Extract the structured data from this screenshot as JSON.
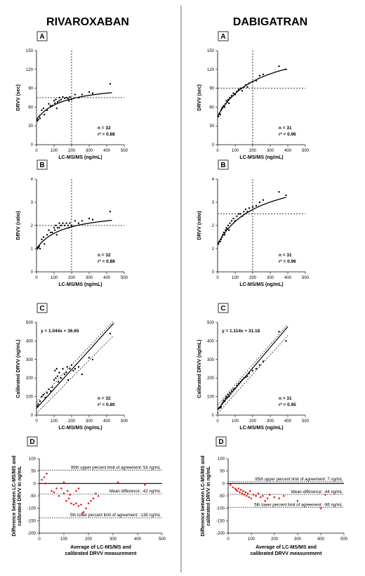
{
  "columns": [
    "RIVAROXABAN",
    "DABIGATRAN"
  ],
  "chart_data": [
    {
      "id": "riva_A",
      "col": 0,
      "row": 0,
      "type": "scatter",
      "letter": "A",
      "xlabel": "LC-MS/MS (ng/mL)",
      "ylabel": "DRVV (sec)",
      "xlim": [
        0,
        500
      ],
      "ylim": [
        0,
        150
      ],
      "xticks": [
        0,
        100,
        200,
        300,
        400,
        500
      ],
      "yticks": [
        0,
        30,
        60,
        90,
        120,
        150
      ],
      "points": [
        [
          5,
          38
        ],
        [
          10,
          40
        ],
        [
          15,
          45
        ],
        [
          20,
          42
        ],
        [
          30,
          55
        ],
        [
          40,
          58
        ],
        [
          45,
          48
        ],
        [
          60,
          55
        ],
        [
          70,
          65
        ],
        [
          80,
          62
        ],
        [
          100,
          70
        ],
        [
          105,
          66
        ],
        [
          110,
          72
        ],
        [
          115,
          58
        ],
        [
          120,
          68
        ],
        [
          130,
          75
        ],
        [
          140,
          72
        ],
        [
          150,
          76
        ],
        [
          160,
          74
        ],
        [
          170,
          75
        ],
        [
          180,
          74
        ],
        [
          185,
          70
        ],
        [
          190,
          76
        ],
        [
          200,
          72
        ],
        [
          220,
          80
        ],
        [
          240,
          75
        ],
        [
          260,
          80
        ],
        [
          300,
          84
        ],
        [
          320,
          82
        ],
        [
          420,
          97
        ],
        [
          130,
          70
        ],
        [
          90,
          62
        ]
      ],
      "curve": {
        "kind": "hyper",
        "base": 40,
        "max": 58,
        "half": 150,
        "xmax": 430
      },
      "hline": 75,
      "vline": 200,
      "stats": [
        "n = 32",
        "r² = 0.88"
      ]
    },
    {
      "id": "dabi_A",
      "col": 1,
      "row": 0,
      "type": "scatter",
      "letter": "A",
      "xlabel": "LC-MS/MS (ng/mL)",
      "ylabel": "DRVV (sec)",
      "xlim": [
        0,
        500
      ],
      "ylim": [
        0,
        150
      ],
      "xticks": [
        0,
        100,
        200,
        300,
        400,
        500
      ],
      "yticks": [
        0,
        30,
        60,
        90,
        120,
        150
      ],
      "points": [
        [
          5,
          45
        ],
        [
          10,
          50
        ],
        [
          15,
          48
        ],
        [
          20,
          55
        ],
        [
          25,
          58
        ],
        [
          30,
          60
        ],
        [
          35,
          62
        ],
        [
          40,
          60
        ],
        [
          45,
          65
        ],
        [
          50,
          70
        ],
        [
          55,
          68
        ],
        [
          60,
          72
        ],
        [
          65,
          66
        ],
        [
          70,
          75
        ],
        [
          80,
          78
        ],
        [
          90,
          82
        ],
        [
          100,
          80
        ],
        [
          110,
          85
        ],
        [
          120,
          88
        ],
        [
          130,
          90
        ],
        [
          140,
          86
        ],
        [
          150,
          92
        ],
        [
          160,
          95
        ],
        [
          170,
          92
        ],
        [
          180,
          98
        ],
        [
          200,
          100
        ],
        [
          220,
          102
        ],
        [
          240,
          110
        ],
        [
          260,
          112
        ],
        [
          350,
          125
        ],
        [
          390,
          120
        ]
      ],
      "curve": {
        "kind": "hyper",
        "base": 45,
        "max": 120,
        "half": 230,
        "xmax": 390
      },
      "hline": 90,
      "vline": 200,
      "stats": [
        "n = 31",
        "r² = 0.96"
      ]
    },
    {
      "id": "riva_B",
      "col": 0,
      "row": 1,
      "type": "scatter",
      "letter": "B",
      "xlabel": "LC-MS/MS (ng/mL)",
      "ylabel": "DRVV (ratio)",
      "xlim": [
        0,
        500
      ],
      "ylim": [
        0,
        4
      ],
      "xticks": [
        0,
        100,
        200,
        300,
        400,
        500
      ],
      "yticks": [
        0,
        1,
        2,
        3,
        4
      ],
      "points": [
        [
          5,
          1.0
        ],
        [
          10,
          1.05
        ],
        [
          15,
          1.1
        ],
        [
          20,
          1.0
        ],
        [
          30,
          1.4
        ],
        [
          40,
          1.5
        ],
        [
          45,
          1.2
        ],
        [
          60,
          1.6
        ],
        [
          70,
          1.8
        ],
        [
          80,
          1.7
        ],
        [
          100,
          1.9
        ],
        [
          105,
          1.8
        ],
        [
          110,
          2.0
        ],
        [
          115,
          1.6
        ],
        [
          120,
          1.9
        ],
        [
          130,
          2.1
        ],
        [
          140,
          2.0
        ],
        [
          150,
          2.1
        ],
        [
          160,
          2.0
        ],
        [
          170,
          2.1
        ],
        [
          180,
          2.0
        ],
        [
          185,
          1.9
        ],
        [
          190,
          2.1
        ],
        [
          200,
          2.0
        ],
        [
          220,
          2.2
        ],
        [
          240,
          2.1
        ],
        [
          260,
          2.2
        ],
        [
          300,
          2.3
        ],
        [
          320,
          2.25
        ],
        [
          420,
          2.6
        ],
        [
          130,
          1.9
        ],
        [
          90,
          1.7
        ]
      ],
      "curve": {
        "kind": "hyper",
        "base": 1.0,
        "max": 1.65,
        "half": 150,
        "xmax": 430
      },
      "hline": 2,
      "vline": 200,
      "stats": [
        "n = 32",
        "r² = 0.88"
      ]
    },
    {
      "id": "dabi_B",
      "col": 1,
      "row": 1,
      "type": "scatter",
      "letter": "B",
      "xlabel": "LC-MS/MS (ng/mL)",
      "ylabel": "DRVV (ratio)",
      "xlim": [
        0,
        500
      ],
      "ylim": [
        0,
        4
      ],
      "xticks": [
        0,
        100,
        200,
        300,
        400,
        500
      ],
      "yticks": [
        0,
        1,
        2,
        3,
        4
      ],
      "points": [
        [
          5,
          1.2
        ],
        [
          10,
          1.3
        ],
        [
          15,
          1.3
        ],
        [
          20,
          1.4
        ],
        [
          25,
          1.5
        ],
        [
          30,
          1.6
        ],
        [
          35,
          1.7
        ],
        [
          40,
          1.6
        ],
        [
          45,
          1.8
        ],
        [
          50,
          1.9
        ],
        [
          55,
          1.85
        ],
        [
          60,
          2.0
        ],
        [
          65,
          1.8
        ],
        [
          70,
          2.1
        ],
        [
          80,
          2.2
        ],
        [
          90,
          2.3
        ],
        [
          100,
          2.2
        ],
        [
          110,
          2.4
        ],
        [
          120,
          2.5
        ],
        [
          130,
          2.5
        ],
        [
          140,
          2.4
        ],
        [
          150,
          2.6
        ],
        [
          160,
          2.7
        ],
        [
          170,
          2.6
        ],
        [
          180,
          2.75
        ],
        [
          200,
          2.8
        ],
        [
          220,
          2.85
        ],
        [
          240,
          3.0
        ],
        [
          260,
          3.1
        ],
        [
          350,
          3.45
        ],
        [
          390,
          3.3
        ]
      ],
      "curve": {
        "kind": "hyper",
        "base": 1.2,
        "max": 3.2,
        "half": 230,
        "xmax": 390
      },
      "hline": 2.5,
      "vline": 200,
      "stats": [
        "n = 31",
        "r² = 0.96"
      ]
    },
    {
      "id": "riva_C",
      "col": 0,
      "row": 2,
      "type": "scatter",
      "letter": "C",
      "xlabel": "LC-MS/MS (ng/mL)",
      "ylabel": "Calibrated DRVV (ng/mL)",
      "xlim": [
        0,
        500
      ],
      "ylim": [
        0,
        500
      ],
      "xticks": [
        0,
        100,
        200,
        300,
        400,
        500
      ],
      "yticks": [
        0,
        100,
        200,
        300,
        400,
        500
      ],
      "points": [
        [
          5,
          50
        ],
        [
          10,
          60
        ],
        [
          20,
          75
        ],
        [
          30,
          100
        ],
        [
          40,
          110
        ],
        [
          50,
          95
        ],
        [
          60,
          120
        ],
        [
          80,
          130
        ],
        [
          100,
          190
        ],
        [
          105,
          240
        ],
        [
          110,
          200
        ],
        [
          115,
          250
        ],
        [
          120,
          210
        ],
        [
          125,
          180
        ],
        [
          130,
          230
        ],
        [
          140,
          200
        ],
        [
          150,
          250
        ],
        [
          160,
          220
        ],
        [
          170,
          230
        ],
        [
          175,
          260
        ],
        [
          180,
          190
        ],
        [
          190,
          250
        ],
        [
          200,
          270
        ],
        [
          210,
          240
        ],
        [
          220,
          250
        ],
        [
          240,
          260
        ],
        [
          260,
          220
        ],
        [
          300,
          310
        ],
        [
          320,
          300
        ],
        [
          420,
          440
        ],
        [
          90,
          150
        ],
        [
          70,
          140
        ]
      ],
      "line": {
        "slope": 1.044,
        "intercept": 36.65,
        "xmax": 440
      },
      "band": {
        "lower": [
          [
            0,
            10
          ],
          [
            440,
            430
          ]
        ],
        "upper": [
          [
            0,
            70
          ],
          [
            440,
            510
          ]
        ]
      },
      "equation": "y = 1.044x + 36.65",
      "stats": [
        "n = 32",
        "r² = 0.80"
      ]
    },
    {
      "id": "dabi_C",
      "col": 1,
      "row": 2,
      "type": "scatter",
      "letter": "C",
      "xlabel": "LC-MS/MS (ng/mL)",
      "ylabel": "Calibrated DRVV (ng/mL)",
      "xlim": [
        0,
        500
      ],
      "ylim": [
        0,
        500
      ],
      "xticks": [
        0,
        100,
        200,
        300,
        400,
        500
      ],
      "yticks": [
        0,
        100,
        200,
        300,
        400,
        500
      ],
      "points": [
        [
          5,
          35
        ],
        [
          10,
          40
        ],
        [
          15,
          40
        ],
        [
          20,
          45
        ],
        [
          25,
          60
        ],
        [
          30,
          70
        ],
        [
          35,
          80
        ],
        [
          40,
          75
        ],
        [
          45,
          90
        ],
        [
          50,
          100
        ],
        [
          55,
          95
        ],
        [
          60,
          110
        ],
        [
          65,
          100
        ],
        [
          70,
          120
        ],
        [
          80,
          130
        ],
        [
          90,
          140
        ],
        [
          100,
          145
        ],
        [
          110,
          160
        ],
        [
          120,
          170
        ],
        [
          130,
          180
        ],
        [
          140,
          190
        ],
        [
          150,
          200
        ],
        [
          160,
          205
        ],
        [
          170,
          210
        ],
        [
          180,
          225
        ],
        [
          200,
          240
        ],
        [
          220,
          250
        ],
        [
          240,
          270
        ],
        [
          260,
          290
        ],
        [
          350,
          450
        ],
        [
          390,
          400
        ]
      ],
      "line": {
        "slope": 1.114,
        "intercept": 31.18,
        "xmax": 400
      },
      "band": {
        "lower": [
          [
            0,
            10
          ],
          [
            400,
            430
          ]
        ],
        "upper": [
          [
            0,
            55
          ],
          [
            400,
            490
          ]
        ]
      },
      "equation": "y = 1.114x + 31.18",
      "stats": [
        "n = 31",
        "r² = 0.95"
      ]
    },
    {
      "id": "riva_D",
      "col": 0,
      "row": 3,
      "type": "scatter",
      "letter": "D",
      "xlabel": "Average of LC-MS/MS and calibrated DRVV measurement",
      "ylabel": "Difference between LC-MS/MS and calibrated DRVV in ng/mL",
      "xlim": [
        0,
        500
      ],
      "ylim": [
        -200,
        100
      ],
      "xticks": [
        0,
        100,
        200,
        300,
        400,
        500
      ],
      "yticks": [
        -200,
        -150,
        -100,
        -50,
        0,
        50,
        100
      ],
      "points": [
        [
          10,
          15
        ],
        [
          20,
          25
        ],
        [
          25,
          0
        ],
        [
          30,
          40
        ],
        [
          50,
          -30
        ],
        [
          60,
          -35
        ],
        [
          70,
          -20
        ],
        [
          80,
          -50
        ],
        [
          90,
          -20
        ],
        [
          100,
          5
        ],
        [
          110,
          -70
        ],
        [
          115,
          -30
        ],
        [
          120,
          -60
        ],
        [
          125,
          -45
        ],
        [
          130,
          -80
        ],
        [
          140,
          -85
        ],
        [
          150,
          -80
        ],
        [
          160,
          -90
        ],
        [
          170,
          -85
        ],
        [
          175,
          -120
        ],
        [
          180,
          -115
        ],
        [
          190,
          -100
        ],
        [
          200,
          -80
        ],
        [
          210,
          -70
        ],
        [
          220,
          -60
        ],
        [
          230,
          -40
        ],
        [
          240,
          -50
        ],
        [
          150,
          -30
        ],
        [
          160,
          -20
        ],
        [
          320,
          5
        ],
        [
          430,
          -5
        ],
        [
          100,
          -40
        ]
      ],
      "lines": [
        {
          "y": 0,
          "style": "solid",
          "label": ""
        },
        {
          "y": 54,
          "style": "dotted",
          "label": "95th upper percent limit of agreement: 54 ng/mL"
        },
        {
          "y": -42,
          "style": "dotted",
          "label": "Mean difference: -42 ng/mL"
        },
        {
          "y": -138,
          "style": "dotted",
          "label": "5th lower percent limit of agreement: -138 ng/mL"
        }
      ]
    },
    {
      "id": "dabi_D",
      "col": 1,
      "row": 3,
      "type": "scatter",
      "letter": "D",
      "xlabel": "Average of LC-MS/MS and calibrated DRVV measurement",
      "ylabel": "Difference between LC-MS/MS and calibrated DRVV in ng/mL",
      "xlim": [
        0,
        500
      ],
      "ylim": [
        -200,
        100
      ],
      "xticks": [
        0,
        100,
        200,
        300,
        400,
        500
      ],
      "yticks": [
        -200,
        -150,
        -100,
        -50,
        0,
        50,
        100
      ],
      "points": [
        [
          10,
          -5
        ],
        [
          20,
          -15
        ],
        [
          30,
          -20
        ],
        [
          35,
          -25
        ],
        [
          40,
          -30
        ],
        [
          45,
          -20
        ],
        [
          50,
          -35
        ],
        [
          55,
          -25
        ],
        [
          60,
          -40
        ],
        [
          65,
          -30
        ],
        [
          70,
          -45
        ],
        [
          75,
          -35
        ],
        [
          80,
          -50
        ],
        [
          85,
          -40
        ],
        [
          90,
          -55
        ],
        [
          95,
          -30
        ],
        [
          100,
          -60
        ],
        [
          110,
          -45
        ],
        [
          120,
          -50
        ],
        [
          130,
          -40
        ],
        [
          140,
          -55
        ],
        [
          150,
          -50
        ],
        [
          160,
          -70
        ],
        [
          170,
          -60
        ],
        [
          180,
          -45
        ],
        [
          200,
          -55
        ],
        [
          220,
          -60
        ],
        [
          240,
          -50
        ],
        [
          300,
          -70
        ],
        [
          400,
          -100
        ],
        [
          420,
          -45
        ]
      ],
      "lines": [
        {
          "y": 0,
          "style": "solid",
          "label": ""
        },
        {
          "y": 7,
          "style": "dotted",
          "label": "95th upper percent limit of agreement: 7 ng/mL"
        },
        {
          "y": -44,
          "style": "dotted",
          "label": "Mean difference: -44 ng/mL"
        },
        {
          "y": -96,
          "style": "dotted",
          "label": "5th lower percent limit of agreement: -96 ng/mL"
        }
      ]
    }
  ]
}
